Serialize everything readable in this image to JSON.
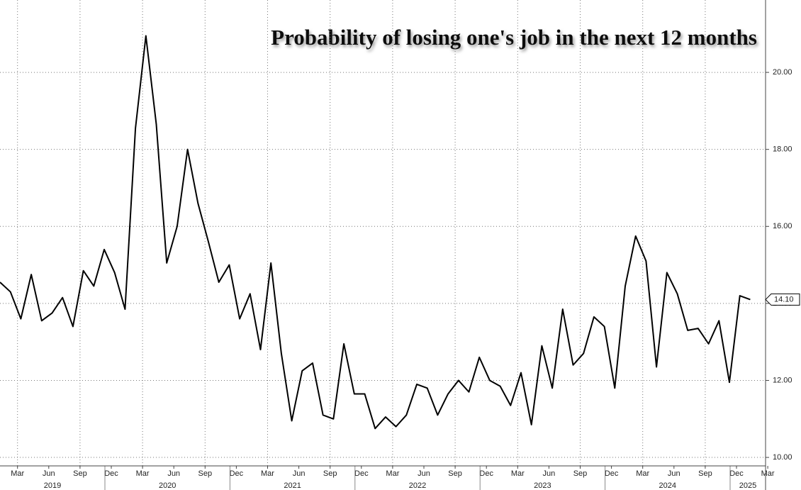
{
  "chart_data": {
    "type": "line",
    "title": "Probability of losing one's job in the next 12 months",
    "x": [
      "2019-02",
      "2019-03",
      "2019-04",
      "2019-05",
      "2019-06",
      "2019-07",
      "2019-08",
      "2019-09",
      "2019-10",
      "2019-11",
      "2019-12",
      "2020-01",
      "2020-02",
      "2020-03",
      "2020-04",
      "2020-05",
      "2020-06",
      "2020-07",
      "2020-08",
      "2020-09",
      "2020-10",
      "2020-11",
      "2020-12",
      "2021-01",
      "2021-02",
      "2021-03",
      "2021-04",
      "2021-05",
      "2021-06",
      "2021-07",
      "2021-08",
      "2021-09",
      "2021-10",
      "2021-11",
      "2021-12",
      "2022-01",
      "2022-02",
      "2022-03",
      "2022-04",
      "2022-05",
      "2022-06",
      "2022-07",
      "2022-08",
      "2022-09",
      "2022-10",
      "2022-11",
      "2022-12",
      "2023-01",
      "2023-02",
      "2023-03",
      "2023-04",
      "2023-05",
      "2023-06",
      "2023-07",
      "2023-08",
      "2023-09",
      "2023-10",
      "2023-11",
      "2023-12",
      "2024-01",
      "2024-02",
      "2024-03",
      "2024-04",
      "2024-05",
      "2024-06",
      "2024-07",
      "2024-08",
      "2024-09",
      "2024-10",
      "2024-11",
      "2024-12",
      "2025-01",
      "2025-02"
    ],
    "values": [
      14.55,
      14.3,
      13.6,
      14.75,
      13.55,
      13.75,
      14.15,
      13.4,
      14.85,
      14.45,
      15.4,
      14.8,
      13.85,
      18.55,
      20.95,
      18.65,
      15.05,
      16.0,
      18.0,
      16.6,
      15.6,
      14.55,
      15.0,
      13.6,
      14.25,
      12.8,
      15.05,
      12.7,
      10.95,
      12.25,
      12.45,
      11.1,
      11.0,
      12.95,
      11.65,
      11.65,
      10.75,
      11.05,
      10.8,
      11.1,
      11.9,
      11.8,
      11.1,
      11.65,
      12.0,
      11.7,
      12.6,
      12.0,
      11.85,
      11.35,
      12.2,
      10.85,
      12.9,
      11.8,
      13.85,
      12.4,
      12.7,
      13.65,
      13.4,
      11.8,
      14.45,
      15.75,
      15.1,
      12.35,
      14.8,
      14.25,
      13.3,
      13.35,
      12.95,
      13.55,
      11.95,
      14.2,
      14.1
    ],
    "last_value_label": "14.10",
    "color": "#000000",
    "ylim": [
      9.78,
      21.88
    ],
    "yticks": [
      {
        "value": 10,
        "label": "10.00"
      },
      {
        "value": 12,
        "label": "12.00"
      },
      {
        "value": 14,
        "label": "14.00"
      },
      {
        "value": 16,
        "label": "16.00"
      },
      {
        "value": 18,
        "label": "18.00"
      },
      {
        "value": 20,
        "label": "20.00"
      }
    ],
    "xticks": [
      {
        "value": "2019-03",
        "label": "Mar"
      },
      {
        "value": "2019-06",
        "label": "Jun"
      },
      {
        "value": "2019-09",
        "label": "Sep"
      },
      {
        "value": "2019-12",
        "label": "Dec"
      },
      {
        "value": "2020-03",
        "label": "Mar"
      },
      {
        "value": "2020-06",
        "label": "Jun"
      },
      {
        "value": "2020-09",
        "label": "Sep"
      },
      {
        "value": "2020-12",
        "label": "Dec"
      },
      {
        "value": "2021-03",
        "label": "Mar"
      },
      {
        "value": "2021-06",
        "label": "Jun"
      },
      {
        "value": "2021-09",
        "label": "Sep"
      },
      {
        "value": "2021-12",
        "label": "Dec"
      },
      {
        "value": "2022-03",
        "label": "Mar"
      },
      {
        "value": "2022-06",
        "label": "Jun"
      },
      {
        "value": "2022-09",
        "label": "Sep"
      },
      {
        "value": "2022-12",
        "label": "Dec"
      },
      {
        "value": "2023-03",
        "label": "Mar"
      },
      {
        "value": "2023-06",
        "label": "Jun"
      },
      {
        "value": "2023-09",
        "label": "Sep"
      },
      {
        "value": "2023-12",
        "label": "Dec"
      },
      {
        "value": "2024-03",
        "label": "Mar"
      },
      {
        "value": "2024-06",
        "label": "Jun"
      },
      {
        "value": "2024-09",
        "label": "Sep"
      },
      {
        "value": "2024-12",
        "label": "Dec"
      },
      {
        "value": "2025-03",
        "label": "Mar"
      }
    ],
    "years": [
      2019,
      2020,
      2021,
      2022,
      2023,
      2024,
      2025
    ],
    "grid": true
  }
}
